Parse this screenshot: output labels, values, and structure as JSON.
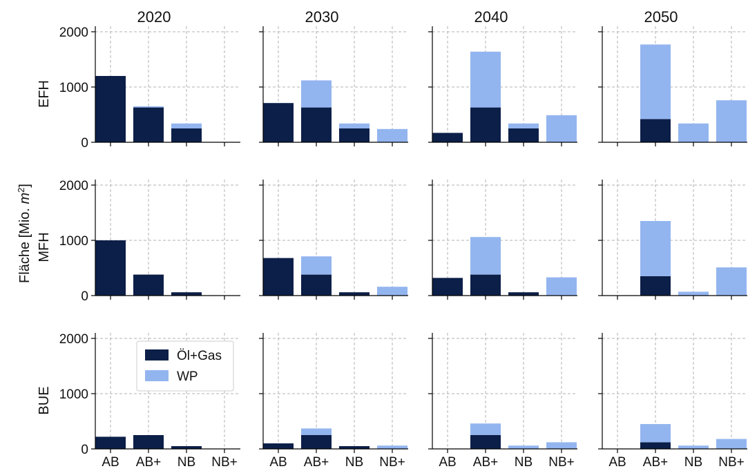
{
  "chart_data": {
    "type": "bar",
    "stacked": true,
    "ylabel": "Fläche [Mio. m²]",
    "ylabel_parts": {
      "prefix": "Fläche [Mio. ",
      "unit": "m",
      "sup": "2",
      "suffix": "]"
    },
    "categories": [
      "AB",
      "AB+",
      "NB",
      "NB+"
    ],
    "columns": [
      "2020",
      "2030",
      "2040",
      "2050"
    ],
    "rows": [
      "EFH",
      "MFH",
      "BUE"
    ],
    "yticks": [
      0,
      1000,
      2000
    ],
    "ylim": [
      0,
      2100
    ],
    "grid": true,
    "legend": {
      "placement": "inside-top-right-of-BUE-2020",
      "entries": [
        "Öl+Gas",
        "WP"
      ]
    },
    "colors": {
      "Öl+Gas": "#0c1f48",
      "WP": "#93b5ef"
    },
    "panels": [
      {
        "row": "EFH",
        "column": "2020",
        "series": [
          {
            "name": "Öl+Gas",
            "values": [
              1200,
              630,
              250,
              0
            ]
          },
          {
            "name": "WP",
            "values": [
              0,
              20,
              90,
              0
            ]
          }
        ]
      },
      {
        "row": "EFH",
        "column": "2030",
        "series": [
          {
            "name": "Öl+Gas",
            "values": [
              710,
              630,
              250,
              0
            ]
          },
          {
            "name": "WP",
            "values": [
              0,
              490,
              90,
              240
            ]
          }
        ]
      },
      {
        "row": "EFH",
        "column": "2040",
        "series": [
          {
            "name": "Öl+Gas",
            "values": [
              170,
              630,
              250,
              0
            ]
          },
          {
            "name": "WP",
            "values": [
              0,
              1010,
              90,
              490
            ]
          }
        ]
      },
      {
        "row": "EFH",
        "column": "2050",
        "series": [
          {
            "name": "Öl+Gas",
            "values": [
              0,
              420,
              0,
              0
            ]
          },
          {
            "name": "WP",
            "values": [
              0,
              1350,
              340,
              760
            ]
          }
        ]
      },
      {
        "row": "MFH",
        "column": "2020",
        "series": [
          {
            "name": "Öl+Gas",
            "values": [
              1000,
              380,
              60,
              0
            ]
          },
          {
            "name": "WP",
            "values": [
              0,
              0,
              0,
              0
            ]
          }
        ]
      },
      {
        "row": "MFH",
        "column": "2030",
        "series": [
          {
            "name": "Öl+Gas",
            "values": [
              680,
              380,
              60,
              0
            ]
          },
          {
            "name": "WP",
            "values": [
              0,
              330,
              0,
              160
            ]
          }
        ]
      },
      {
        "row": "MFH",
        "column": "2040",
        "series": [
          {
            "name": "Öl+Gas",
            "values": [
              320,
              380,
              60,
              0
            ]
          },
          {
            "name": "WP",
            "values": [
              0,
              680,
              0,
              330
            ]
          }
        ]
      },
      {
        "row": "MFH",
        "column": "2050",
        "series": [
          {
            "name": "Öl+Gas",
            "values": [
              0,
              350,
              0,
              0
            ]
          },
          {
            "name": "WP",
            "values": [
              0,
              1000,
              70,
              510
            ]
          }
        ]
      },
      {
        "row": "BUE",
        "column": "2020",
        "series": [
          {
            "name": "Öl+Gas",
            "values": [
              220,
              250,
              50,
              0
            ]
          },
          {
            "name": "WP",
            "values": [
              0,
              0,
              0,
              0
            ]
          }
        ]
      },
      {
        "row": "BUE",
        "column": "2030",
        "series": [
          {
            "name": "Öl+Gas",
            "values": [
              100,
              250,
              50,
              0
            ]
          },
          {
            "name": "WP",
            "values": [
              0,
              120,
              0,
              60
            ]
          }
        ]
      },
      {
        "row": "BUE",
        "column": "2040",
        "series": [
          {
            "name": "Öl+Gas",
            "values": [
              0,
              250,
              0,
              0
            ]
          },
          {
            "name": "WP",
            "values": [
              0,
              210,
              60,
              120
            ]
          }
        ]
      },
      {
        "row": "BUE",
        "column": "2050",
        "series": [
          {
            "name": "Öl+Gas",
            "values": [
              0,
              120,
              0,
              0
            ]
          },
          {
            "name": "WP",
            "values": [
              0,
              330,
              60,
              180
            ]
          }
        ]
      }
    ]
  }
}
